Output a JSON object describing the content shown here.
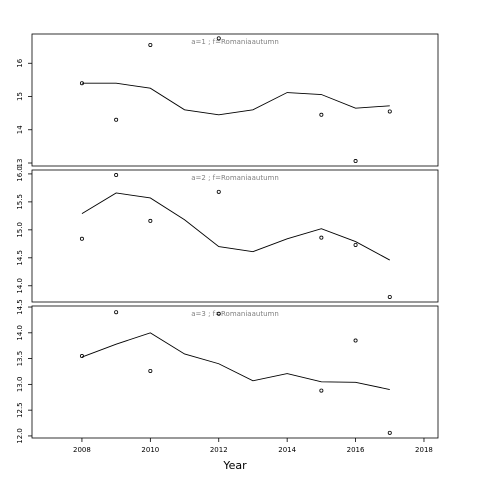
{
  "chart_data": [
    {
      "type": "line",
      "title": "a=1  ;  f=Romaniaautumn",
      "xlim": [
        2006.54,
        2018.41
      ],
      "ylim": [
        12.91,
        16.88
      ],
      "yticks": [
        13,
        14,
        15,
        16
      ],
      "series": [
        {
          "type": "scatter",
          "color": "#000000",
          "x": [
            2008,
            2009,
            2010,
            2012,
            2015,
            2016,
            2017
          ],
          "values": [
            15.4,
            14.3,
            16.55,
            16.75,
            14.45,
            13.06,
            14.55
          ]
        },
        {
          "type": "line",
          "color": "#000000",
          "x": [
            2008,
            2009,
            2010,
            2011,
            2012,
            2013,
            2014,
            2015,
            2016,
            2017
          ],
          "values": [
            15.4,
            15.4,
            15.25,
            14.6,
            14.45,
            14.6,
            15.12,
            15.06,
            14.65,
            14.72
          ]
        }
      ]
    },
    {
      "type": "line",
      "title": "a=2  ;  f=Romaniaautumn",
      "xlim": [
        2006.54,
        2018.41
      ],
      "ylim": [
        13.71,
        16.07
      ],
      "yticks": [
        {
          "value": 14,
          "label": "14.0"
        },
        14.5,
        {
          "value": 15,
          "label": "15.0"
        },
        15.5,
        {
          "value": 16,
          "label": "16.0"
        }
      ],
      "series": [
        {
          "type": "scatter",
          "color": "#000000",
          "x": [
            2008,
            2009,
            2010,
            2012,
            2015,
            2016,
            2017
          ],
          "values": [
            14.84,
            15.98,
            15.16,
            15.68,
            14.86,
            14.73,
            13.8
          ]
        },
        {
          "type": "line",
          "color": "#000000",
          "x": [
            2008,
            2009,
            2010,
            2011,
            2012,
            2013,
            2014,
            2015,
            2016,
            2017
          ],
          "values": [
            15.29,
            15.66,
            15.57,
            15.18,
            14.7,
            14.61,
            14.84,
            15.02,
            14.79,
            14.46
          ]
        }
      ]
    },
    {
      "type": "line",
      "title": "a=3  ;  f=Romaniaautumn",
      "xlabel": "Year",
      "xlim": [
        2006.54,
        2018.41
      ],
      "ylim": [
        11.96,
        14.52
      ],
      "xticks": [
        2008,
        2010,
        2012,
        2014,
        2016,
        2018
      ],
      "yticks": [
        {
          "value": 12,
          "label": "12.0"
        },
        12.5,
        {
          "value": 13,
          "label": "13.0"
        },
        13.5,
        {
          "value": 14,
          "label": "14.0"
        },
        14.5
      ],
      "series": [
        {
          "type": "scatter",
          "color": "#000000",
          "x": [
            2008,
            2009,
            2010,
            2012,
            2015,
            2016,
            2017
          ],
          "values": [
            13.55,
            14.4,
            13.26,
            14.37,
            12.88,
            13.85,
            12.06
          ]
        },
        {
          "type": "line",
          "color": "#000000",
          "x": [
            2008,
            2009,
            2010,
            2011,
            2012,
            2013,
            2014,
            2015,
            2016,
            2017
          ],
          "values": [
            13.53,
            13.78,
            14.0,
            13.59,
            13.4,
            13.07,
            13.21,
            13.05,
            13.04,
            12.9
          ]
        }
      ]
    }
  ]
}
